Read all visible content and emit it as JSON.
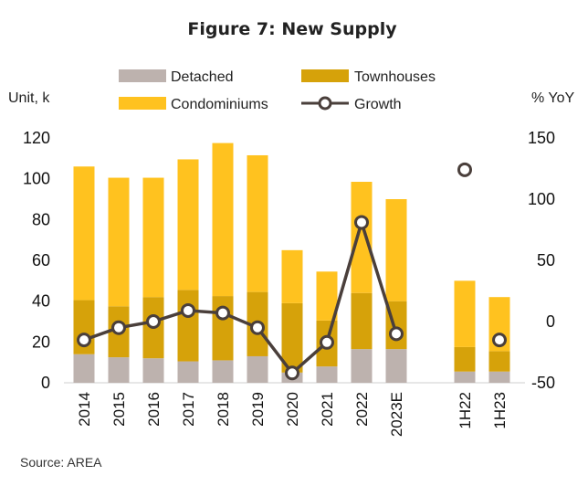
{
  "colors": {
    "detached": "#bdb2ae",
    "townhouses": "#d6a20a",
    "condominiums": "#ffc21f",
    "growth": "#4a3f3b"
  },
  "chart_data": {
    "type": "bar",
    "stacked": true,
    "title": "Figure 7: New Supply",
    "ylabel_left": "Unit, k",
    "ylabel_right": "% YoY",
    "source": "Source: AREA",
    "categories": [
      "2014",
      "2015",
      "2016",
      "2017",
      "2018",
      "2019",
      "2020",
      "2021",
      "2022",
      "2023E",
      "1H22",
      "1H23"
    ],
    "ylim_left": [
      0,
      120
    ],
    "yticks_left": [
      0,
      20,
      40,
      60,
      80,
      100,
      120
    ],
    "ylim_right": [
      -50,
      150
    ],
    "yticks_right": [
      -50,
      0,
      50,
      100,
      150
    ],
    "legend_position": "top",
    "series": [
      {
        "name": "Detached",
        "type": "bar",
        "values": [
          14,
          12.5,
          12,
          10.5,
          11,
          13,
          5,
          8,
          16.5,
          16.5,
          5.5,
          5.5
        ]
      },
      {
        "name": "Townhouses",
        "type": "bar",
        "values": [
          26.5,
          25,
          30,
          35,
          31.5,
          31.5,
          34,
          22.5,
          27.5,
          23.5,
          12,
          10
        ]
      },
      {
        "name": "Condominiums",
        "type": "bar",
        "values": [
          65.5,
          63,
          58.5,
          64,
          75,
          67,
          26,
          24,
          54.5,
          50,
          32.5,
          26.5
        ]
      },
      {
        "name": "Growth",
        "type": "line",
        "axis": "right",
        "values": [
          -15,
          -5,
          0,
          9,
          7,
          -5,
          -42,
          -17,
          81,
          -10,
          124,
          -15
        ]
      }
    ]
  }
}
